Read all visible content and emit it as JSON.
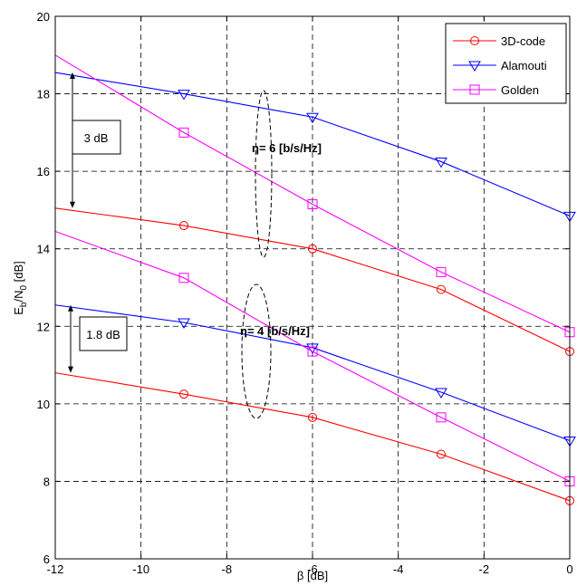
{
  "chart_data": {
    "type": "line",
    "title": "",
    "xlabel": "β [dB]",
    "ylabel_parts": {
      "E": "E",
      "b": "b",
      "slash": "/N",
      "zero": "0",
      "unit": " [dB]"
    },
    "xlim": [
      -12,
      0
    ],
    "ylim": [
      6,
      20
    ],
    "xticks": [
      -12,
      -10,
      -8,
      -6,
      -4,
      -2,
      0
    ],
    "yticks": [
      6,
      8,
      10,
      12,
      14,
      16,
      18,
      20
    ],
    "grid": true,
    "legend_position": "top-right",
    "series": [
      {
        "name": "3D-code",
        "group": "eta6",
        "color": "#ff0000",
        "marker": "circle",
        "x": [
          -12,
          -9,
          -6,
          -3,
          0
        ],
        "y": [
          15.05,
          14.6,
          14.0,
          12.95,
          11.35
        ]
      },
      {
        "name": "Alamouti",
        "group": "eta6",
        "color": "#0000ff",
        "marker": "triangle-down",
        "x": [
          -12,
          -9,
          -6,
          -3,
          0
        ],
        "y": [
          18.55,
          18.0,
          17.4,
          16.25,
          14.85
        ]
      },
      {
        "name": "Golden",
        "group": "eta6",
        "color": "#ff00ff",
        "marker": "square",
        "x": [
          -12,
          -9,
          -6,
          -3,
          0
        ],
        "y": [
          19.0,
          17.0,
          15.15,
          13.4,
          11.85
        ]
      },
      {
        "name": "3D-code",
        "group": "eta4",
        "color": "#ff0000",
        "marker": "circle",
        "x": [
          -12,
          -9,
          -6,
          -3,
          0
        ],
        "y": [
          10.8,
          10.25,
          9.65,
          8.7,
          7.5
        ]
      },
      {
        "name": "Alamouti",
        "group": "eta4",
        "color": "#0000ff",
        "marker": "triangle-down",
        "x": [
          -12,
          -9,
          -6,
          -3,
          0
        ],
        "y": [
          12.55,
          12.1,
          11.45,
          10.3,
          9.05
        ]
      },
      {
        "name": "Golden",
        "group": "eta4",
        "color": "#ff00ff",
        "marker": "square",
        "x": [
          -12,
          -9,
          -6,
          -3,
          0
        ],
        "y": [
          14.45,
          13.25,
          11.35,
          9.65,
          8.0
        ]
      }
    ],
    "legend": [
      {
        "label": "3D-code",
        "color": "#ff0000",
        "marker": "circle"
      },
      {
        "label": "Alamouti",
        "color": "#0000ff",
        "marker": "triangle-down"
      },
      {
        "label": "Golden",
        "color": "#ff00ff",
        "marker": "square"
      }
    ],
    "annotations": {
      "gap_top": {
        "label": "3 dB",
        "y_from": 18.55,
        "y_to": 15.05
      },
      "gap_bottom": {
        "label": "1.8 dB",
        "y_from": 12.55,
        "y_to": 10.8
      },
      "eta6": {
        "label": "η= 6 [b/s/Hz]"
      },
      "eta4": {
        "label": "η= 4 [b/s/Hz]"
      }
    }
  }
}
